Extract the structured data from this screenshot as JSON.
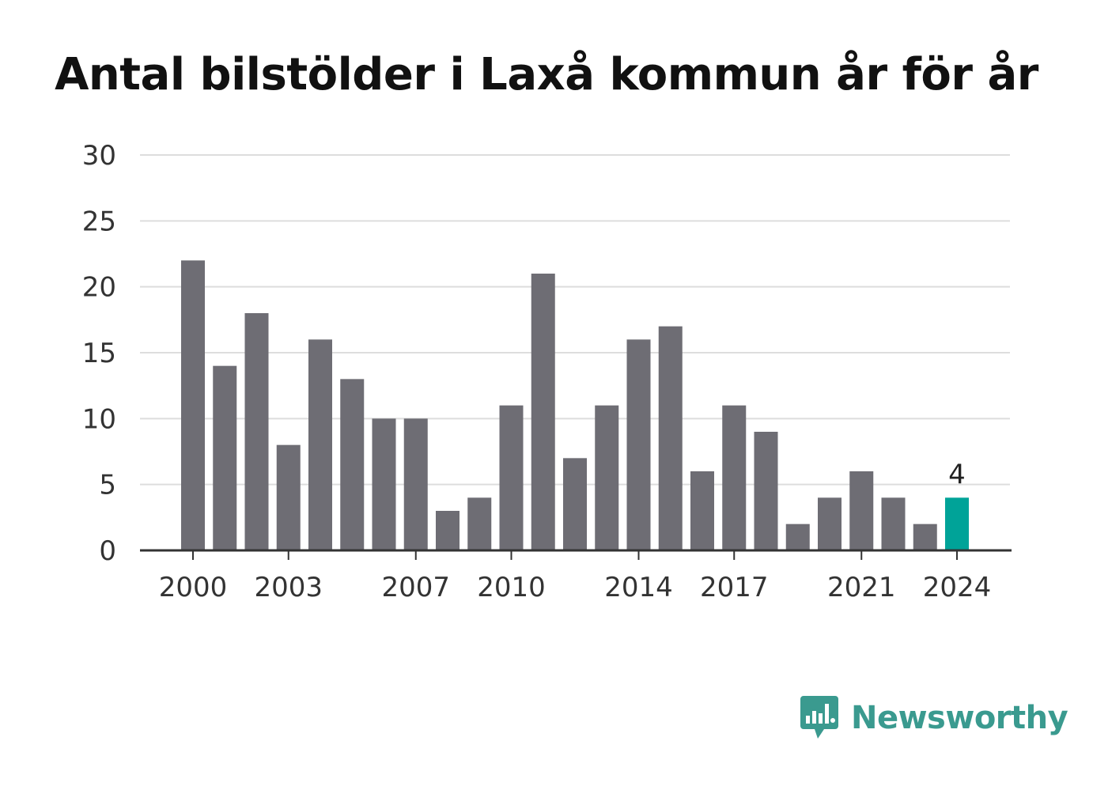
{
  "chart_data": {
    "type": "bar",
    "title": "Antal bilstölder i Laxå kommun år för år",
    "xlabel": "",
    "ylabel": "",
    "ylim": [
      0,
      30
    ],
    "yticks": [
      0,
      5,
      10,
      15,
      20,
      25,
      30
    ],
    "categories": [
      2000,
      2001,
      2002,
      2003,
      2004,
      2005,
      2006,
      2007,
      2008,
      2009,
      2010,
      2011,
      2012,
      2013,
      2014,
      2015,
      2016,
      2017,
      2018,
      2019,
      2020,
      2021,
      2022,
      2023,
      2024
    ],
    "values": [
      22,
      14,
      18,
      8,
      16,
      13,
      10,
      10,
      3,
      4,
      11,
      21,
      7,
      11,
      16,
      17,
      6,
      11,
      9,
      2,
      4,
      6,
      4,
      2,
      4
    ],
    "xtick_labels": [
      2000,
      2003,
      2007,
      2010,
      2014,
      2017,
      2021,
      2024
    ],
    "highlight": {
      "category": 2024,
      "value_label": "4",
      "color": "#00a398"
    },
    "bar_color": "#6e6d74",
    "grid": true
  },
  "branding": {
    "logo_text": "Newsworthy",
    "logo_color": "#3a9a8f"
  }
}
